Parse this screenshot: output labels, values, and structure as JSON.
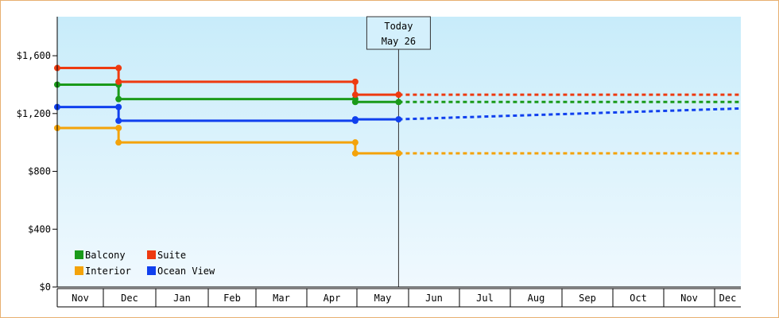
{
  "chart_data": {
    "type": "line",
    "step": true,
    "title": "",
    "xlabel": "",
    "ylabel": "",
    "ylim": [
      0,
      1870
    ],
    "y_ticks": [
      0,
      400,
      800,
      1200,
      1600
    ],
    "y_tick_labels": [
      "$0",
      "$400",
      "$800",
      "$1,200",
      "$1,600"
    ],
    "x_months": [
      "Nov",
      "Dec",
      "Jan",
      "Feb",
      "Mar",
      "Apr",
      "May",
      "Jun",
      "Jul",
      "Aug",
      "Sep",
      "Oct",
      "Nov",
      "Dec"
    ],
    "grid": false,
    "legend_position": "bottom-left",
    "today_marker": {
      "line1": "Today",
      "line2": "May 26"
    },
    "series": [
      {
        "name": "Balcony",
        "color": "#1a9a1a",
        "history": [
          {
            "date": "Nov 1",
            "value": 1400
          },
          {
            "date": "Dec 10",
            "value": 1400
          },
          {
            "date": "Dec 10",
            "value": 1300
          },
          {
            "date": "Apr 30",
            "value": 1300
          },
          {
            "date": "Apr 30",
            "value": 1280
          },
          {
            "date": "May 26",
            "value": 1280
          }
        ],
        "forecast": [
          {
            "date": "May 26",
            "value": 1280
          },
          {
            "date": "Dec 31",
            "value": 1280
          }
        ]
      },
      {
        "name": "Suite",
        "color": "#ee3a10",
        "history": [
          {
            "date": "Nov 1",
            "value": 1515
          },
          {
            "date": "Dec 10",
            "value": 1515
          },
          {
            "date": "Dec 10",
            "value": 1420
          },
          {
            "date": "Apr 30",
            "value": 1420
          },
          {
            "date": "Apr 30",
            "value": 1330
          },
          {
            "date": "May 26",
            "value": 1330
          }
        ],
        "forecast": [
          {
            "date": "May 26",
            "value": 1330
          },
          {
            "date": "Dec 31",
            "value": 1330
          }
        ]
      },
      {
        "name": "Interior",
        "color": "#f4a30a",
        "history": [
          {
            "date": "Nov 1",
            "value": 1100
          },
          {
            "date": "Dec 10",
            "value": 1100
          },
          {
            "date": "Dec 10",
            "value": 1000
          },
          {
            "date": "Apr 30",
            "value": 1000
          },
          {
            "date": "Apr 30",
            "value": 925
          },
          {
            "date": "May 26",
            "value": 925
          }
        ],
        "forecast": [
          {
            "date": "May 26",
            "value": 925
          },
          {
            "date": "Dec 31",
            "value": 925
          }
        ]
      },
      {
        "name": "Ocean View",
        "color": "#1040ee",
        "history": [
          {
            "date": "Nov 1",
            "value": 1245
          },
          {
            "date": "Dec 10",
            "value": 1245
          },
          {
            "date": "Dec 10",
            "value": 1150
          },
          {
            "date": "Apr 30",
            "value": 1150
          },
          {
            "date": "Apr 30",
            "value": 1160
          },
          {
            "date": "May 26",
            "value": 1160
          }
        ],
        "forecast": [
          {
            "date": "May 26",
            "value": 1160
          },
          {
            "date": "Dec 31",
            "value": 1235
          }
        ]
      }
    ],
    "legend_order": [
      "Balcony",
      "Suite",
      "Interior",
      "Ocean View"
    ]
  }
}
